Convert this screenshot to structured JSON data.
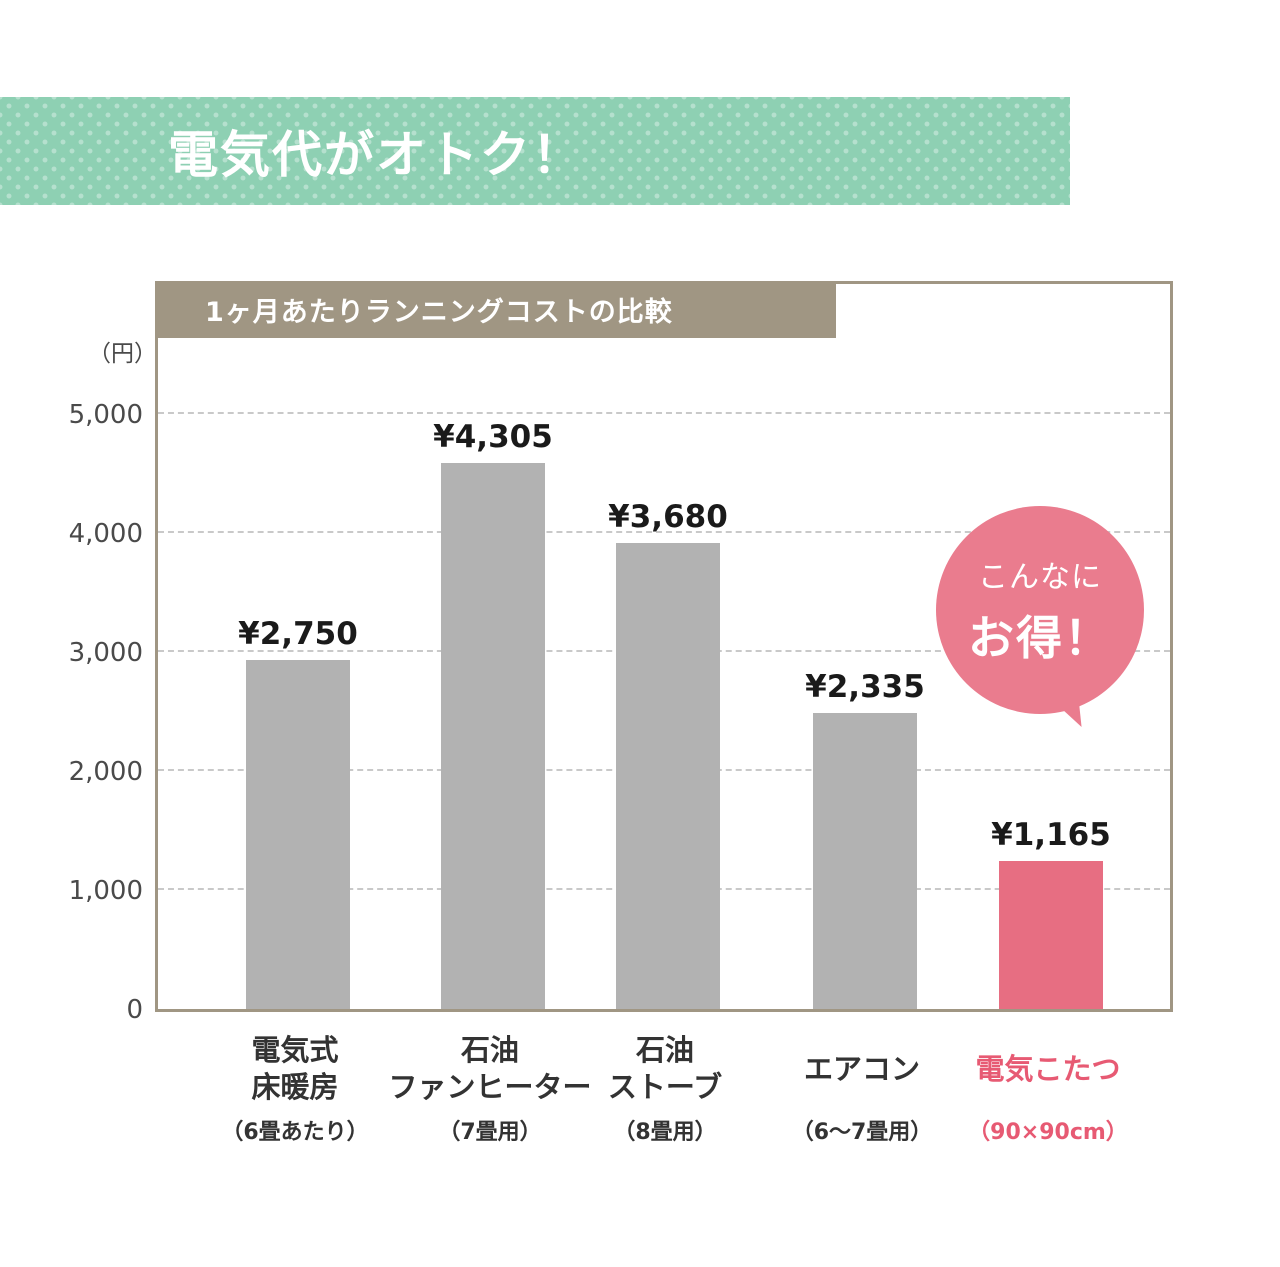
{
  "banner": {
    "title": "電気代がオトク！"
  },
  "chart": {
    "header": "1ヶ月あたりランニングコストの比較",
    "unit_label": "（円）"
  },
  "bubble": {
    "line1": "こんなに",
    "line2": "お得！"
  },
  "chart_data": {
    "type": "bar",
    "title": "1ヶ月あたりランニングコストの比較",
    "ylabel": "円",
    "ylim": [
      0,
      5000
    ],
    "grid": "horizontal dashed",
    "legend": "none",
    "y_ticks": [
      0,
      1000,
      2000,
      3000,
      4000,
      5000
    ],
    "y_tick_labels": [
      "0",
      "1,000",
      "2,000",
      "3,000",
      "4,000",
      "5,000"
    ],
    "categories": [
      "電気式床暖房",
      "石油ファンヒーター",
      "石油ストーブ",
      "エアコン",
      "電気こたつ"
    ],
    "category_lines": [
      [
        "電気式",
        "床暖房"
      ],
      [
        "石油",
        "ファンヒーター"
      ],
      [
        "石油",
        "ストーブ"
      ],
      [
        "エアコン"
      ],
      [
        "電気こたつ"
      ]
    ],
    "category_sublabels": [
      "（6畳あたり）",
      "（7畳用）",
      "（8畳用）",
      "（6～7畳用）",
      "（90×90cm）"
    ],
    "values": [
      2750,
      4305,
      3680,
      2335,
      1165
    ],
    "value_labels": [
      "¥2,750",
      "¥4,305",
      "¥3,680",
      "¥2,335",
      "¥1,165"
    ],
    "highlight_index": 4,
    "colors": {
      "bar_gray": "#b2b2b2",
      "bar_pink": "#e76e82",
      "label_pink": "#e75a73",
      "banner_green": "#8ed0b3",
      "frame_taupe": "#a09683",
      "bubble_pink": "#ea7c8e"
    }
  }
}
